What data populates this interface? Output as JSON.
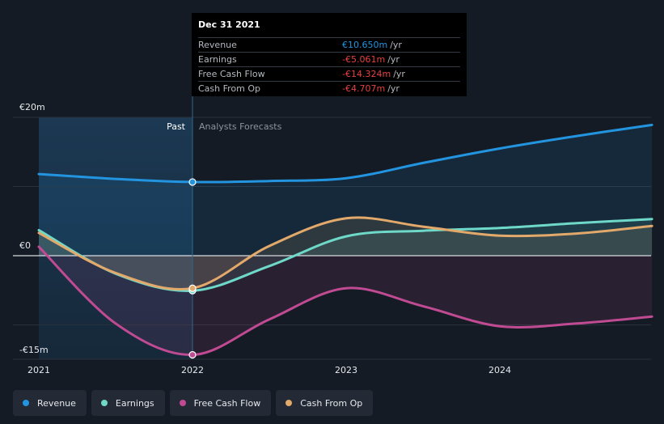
{
  "tooltip": {
    "date": "Dec 31 2021",
    "rows": [
      {
        "label": "Revenue",
        "value": "€10.650m",
        "unit": "/yr",
        "color": "#2394df"
      },
      {
        "label": "Earnings",
        "value": "-€5.061m",
        "unit": "/yr",
        "color": "#e64141"
      },
      {
        "label": "Free Cash Flow",
        "value": "-€14.324m",
        "unit": "/yr",
        "color": "#e64141"
      },
      {
        "label": "Cash From Op",
        "value": "-€4.707m",
        "unit": "/yr",
        "color": "#e64141"
      }
    ]
  },
  "legend": [
    {
      "label": "Revenue",
      "color": "#2394df"
    },
    {
      "label": "Earnings",
      "color": "#6ed9c8"
    },
    {
      "label": "Free Cash Flow",
      "color": "#c04b93"
    },
    {
      "label": "Cash From Op",
      "color": "#e2a96b"
    }
  ],
  "chart_data": {
    "type": "line",
    "x_min": 2021.0,
    "x_max": 2024.99,
    "ylim": [
      -15,
      20
    ],
    "y_tick_labels": [
      {
        "value": 20,
        "label": "€20m"
      },
      {
        "value": 0,
        "label": "€0"
      },
      {
        "value": -15,
        "label": "-€15m"
      }
    ],
    "x_ticks": [
      {
        "value": 2021,
        "label": "2021"
      },
      {
        "value": 2022,
        "label": "2022"
      },
      {
        "value": 2023,
        "label": "2023"
      },
      {
        "value": 2024,
        "label": "2024"
      }
    ],
    "divider_x": 2022.0,
    "past_label": "Past",
    "forecast_label": "Analysts Forecasts",
    "series": [
      {
        "name": "Revenue",
        "color": "#2394df",
        "points": [
          [
            2021.0,
            11.8
          ],
          [
            2021.5,
            11.1
          ],
          [
            2022.0,
            10.65
          ],
          [
            2022.5,
            10.8
          ],
          [
            2023.0,
            11.2
          ],
          [
            2023.5,
            13.4
          ],
          [
            2024.0,
            15.5
          ],
          [
            2024.5,
            17.3
          ],
          [
            2024.99,
            18.9
          ]
        ]
      },
      {
        "name": "Earnings",
        "color": "#6ed9c8",
        "points": [
          [
            2021.0,
            3.7
          ],
          [
            2021.5,
            -2.6
          ],
          [
            2022.0,
            -5.061
          ],
          [
            2022.5,
            -1.5
          ],
          [
            2023.0,
            2.8
          ],
          [
            2023.5,
            3.6
          ],
          [
            2024.0,
            4.0
          ],
          [
            2024.5,
            4.7
          ],
          [
            2024.99,
            5.3
          ]
        ]
      },
      {
        "name": "Free Cash Flow",
        "color": "#c04b93",
        "points": [
          [
            2021.0,
            1.3
          ],
          [
            2021.5,
            -9.8
          ],
          [
            2022.0,
            -14.324
          ],
          [
            2022.5,
            -9.2
          ],
          [
            2023.0,
            -4.7
          ],
          [
            2023.5,
            -7.3
          ],
          [
            2024.0,
            -10.2
          ],
          [
            2024.5,
            -9.8
          ],
          [
            2024.99,
            -8.8
          ]
        ]
      },
      {
        "name": "Cash From Op",
        "color": "#e2a96b",
        "points": [
          [
            2021.0,
            3.3
          ],
          [
            2021.5,
            -2.5
          ],
          [
            2022.0,
            -4.707
          ],
          [
            2022.5,
            1.4
          ],
          [
            2023.0,
            5.4
          ],
          [
            2023.5,
            4.2
          ],
          [
            2024.0,
            2.9
          ],
          [
            2024.5,
            3.2
          ],
          [
            2024.99,
            4.3
          ]
        ]
      }
    ],
    "highlight_x": 2022.0
  }
}
